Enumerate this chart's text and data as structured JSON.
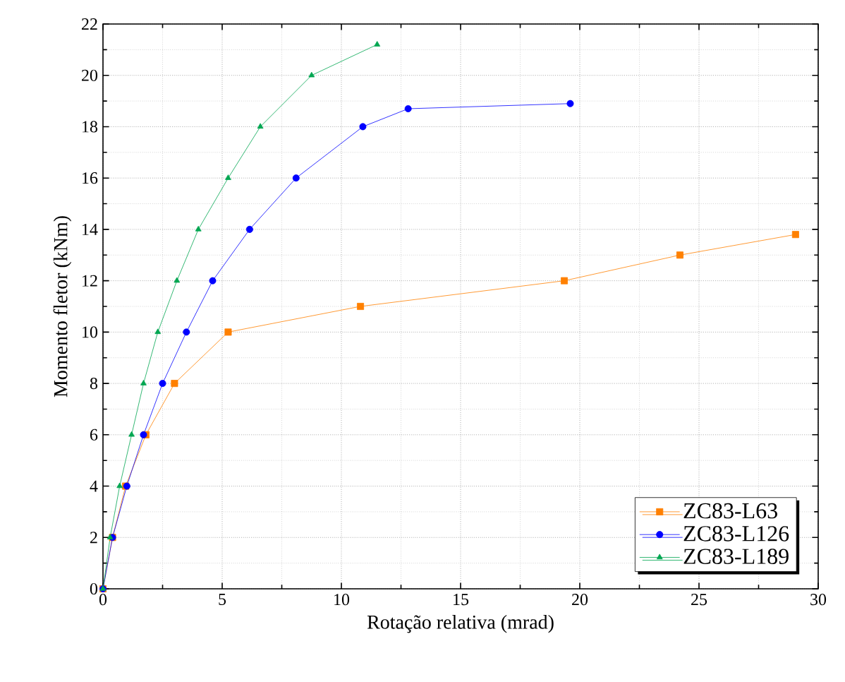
{
  "chart_data": {
    "type": "line",
    "xlabel": "Rotação relativa (mrad)",
    "ylabel": "Momento fletor (kNm)",
    "xlim": [
      0,
      30
    ],
    "ylim": [
      0,
      22
    ],
    "xticks": [
      0,
      5,
      10,
      15,
      20,
      25,
      30
    ],
    "yticks": [
      0,
      2,
      4,
      6,
      8,
      10,
      12,
      14,
      16,
      18,
      20,
      22
    ],
    "grid": true,
    "legend": "bottom right",
    "series": [
      {
        "name": "ZC83-L63",
        "color": "#ff8000",
        "marker": "square",
        "x": [
          0,
          0.4,
          0.95,
          1.8,
          3.0,
          5.25,
          10.8,
          19.35,
          24.2,
          29.05
        ],
        "values": [
          0,
          2,
          4,
          6,
          8,
          10,
          11,
          12,
          13,
          13.8
        ]
      },
      {
        "name": "ZC83-L126",
        "color": "#0000ff",
        "marker": "circle",
        "x": [
          0,
          0.4,
          1.0,
          1.7,
          2.5,
          3.5,
          4.6,
          6.15,
          8.1,
          10.9,
          12.8,
          19.6
        ],
        "values": [
          0,
          2,
          4,
          6,
          8,
          10,
          12,
          14,
          16,
          18,
          18.7,
          18.9
        ]
      },
      {
        "name": "ZC83-L189",
        "color": "#00a651",
        "marker": "triangle",
        "x": [
          0,
          0.3,
          0.7,
          1.2,
          1.7,
          2.3,
          3.1,
          4.0,
          5.25,
          6.6,
          8.75,
          11.5
        ],
        "values": [
          0,
          2,
          4,
          6,
          8,
          10,
          12,
          14,
          16,
          18,
          20,
          21.2
        ]
      }
    ]
  }
}
